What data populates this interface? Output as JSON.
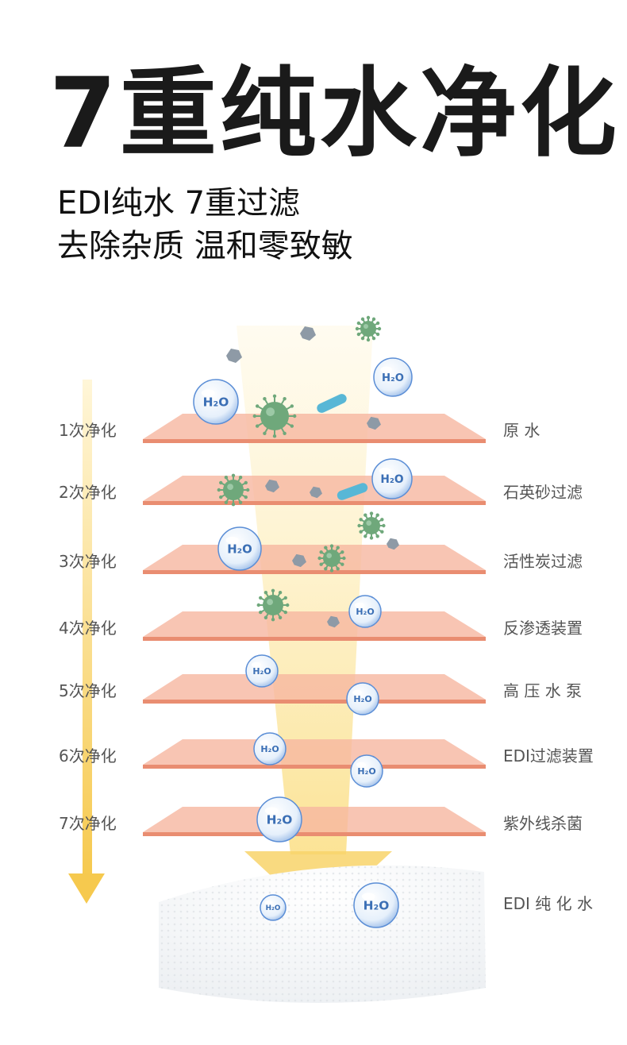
{
  "title": "7重纯水净化",
  "subtitle_line1": "EDI纯水 7重过滤",
  "subtitle_line2": "去除杂质 温和零致敏",
  "stages": [
    {
      "step": "1次净化",
      "process": "原          水"
    },
    {
      "step": "2次净化",
      "process": "石英砂过滤"
    },
    {
      "step": "3次净化",
      "process": "活性炭过滤"
    },
    {
      "step": "4次净化",
      "process": "反渗透装置"
    },
    {
      "step": "5次净化",
      "process": "高 压 水 泵"
    },
    {
      "step": "6次净化",
      "process": "EDI过滤装置"
    },
    {
      "step": "7次净化",
      "process": "紫外线杀菌"
    }
  ],
  "result_label": "EDI 纯 化 水",
  "water_badge": "H₂O",
  "colors": {
    "layer_fill": "#f6b7a0",
    "layer_edge": "#e98d71",
    "arrow": "#f8d36a",
    "germ": "#6fa87b",
    "stone": "#8e9aa6",
    "bubble": "#5b8ed6",
    "side_arrow": "#f6c94e"
  },
  "icons": [
    "water-drop-icon",
    "germ-icon",
    "stone-icon",
    "bacteria-icon"
  ]
}
